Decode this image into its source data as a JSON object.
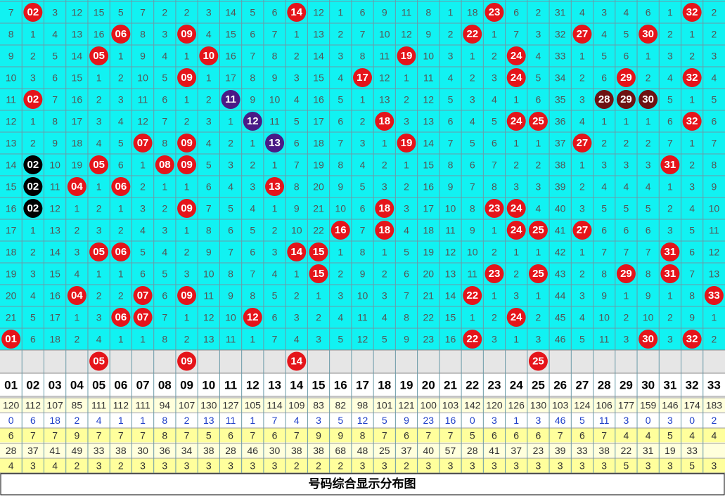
{
  "grid": {
    "ball_color": "#e5141a",
    "rows": [
      [
        7,
        {
          "ball": "02"
        },
        3,
        12,
        15,
        5,
        7,
        2,
        2,
        3,
        14,
        5,
        6,
        {
          "ball": "14"
        },
        12,
        1,
        6,
        9,
        11,
        8,
        1,
        18,
        {
          "ball": "23"
        },
        6,
        2,
        31,
        4,
        3,
        4,
        6,
        1,
        {
          "ball": "32"
        },
        2
      ],
      [
        8,
        1,
        4,
        13,
        16,
        {
          "ball": "06"
        },
        8,
        3,
        {
          "ball": "09"
        },
        4,
        15,
        6,
        7,
        1,
        13,
        2,
        7,
        10,
        12,
        9,
        2,
        {
          "ball": "22"
        },
        1,
        7,
        3,
        32,
        {
          "ball": "27"
        },
        4,
        5,
        {
          "ball": "30"
        },
        2,
        1,
        2
      ],
      [
        9,
        2,
        5,
        14,
        {
          "ball": "05"
        },
        1,
        9,
        4,
        1,
        {
          "ball": "10"
        },
        16,
        7,
        8,
        2,
        14,
        3,
        8,
        11,
        {
          "ball": "19"
        },
        10,
        3,
        1,
        2,
        {
          "ball": "24"
        },
        4,
        33,
        1,
        5,
        6,
        1,
        3,
        2,
        3
      ],
      [
        10,
        3,
        6,
        15,
        1,
        2,
        10,
        5,
        {
          "ball": "09"
        },
        1,
        17,
        8,
        9,
        3,
        15,
        4,
        {
          "ball": "17"
        },
        12,
        1,
        11,
        4,
        2,
        3,
        {
          "ball": "24"
        },
        5,
        34,
        2,
        6,
        {
          "ball": "29"
        },
        2,
        4,
        {
          "ball": "32"
        },
        4
      ],
      [
        11,
        {
          "ball": "02"
        },
        7,
        16,
        2,
        3,
        11,
        6,
        1,
        2,
        {
          "ball": "11",
          "color": "#4a1a86"
        },
        9,
        10,
        4,
        16,
        5,
        1,
        13,
        2,
        12,
        5,
        3,
        4,
        1,
        6,
        35,
        3,
        {
          "ball": "28",
          "color": "#6e1212"
        },
        {
          "ball": "29",
          "color": "#6e1212"
        },
        {
          "ball": "30",
          "color": "#6e1212"
        },
        5,
        1,
        5
      ],
      [
        12,
        1,
        8,
        17,
        3,
        4,
        12,
        7,
        2,
        3,
        1,
        {
          "ball": "12",
          "color": "#4a1a86"
        },
        11,
        5,
        17,
        6,
        2,
        {
          "ball": "18"
        },
        3,
        13,
        6,
        4,
        5,
        {
          "ball": "24"
        },
        {
          "ball": "25"
        },
        36,
        4,
        1,
        1,
        1,
        6,
        {
          "ball": "32"
        },
        6
      ],
      [
        13,
        2,
        9,
        18,
        4,
        5,
        {
          "ball": "07"
        },
        8,
        {
          "ball": "09"
        },
        4,
        2,
        1,
        {
          "ball": "13",
          "color": "#4a1a86"
        },
        6,
        18,
        7,
        3,
        1,
        {
          "ball": "19"
        },
        14,
        7,
        5,
        6,
        1,
        1,
        37,
        {
          "ball": "27"
        },
        2,
        2,
        2,
        7,
        1,
        7
      ],
      [
        14,
        {
          "ball": "02",
          "color": "#000000"
        },
        10,
        19,
        {
          "ball": "05"
        },
        6,
        1,
        {
          "ball": "08"
        },
        {
          "ball": "09"
        },
        5,
        3,
        2,
        1,
        7,
        19,
        8,
        4,
        2,
        1,
        15,
        8,
        6,
        7,
        2,
        2,
        38,
        1,
        3,
        3,
        3,
        {
          "ball": "31"
        },
        2,
        8
      ],
      [
        15,
        {
          "ball": "02",
          "color": "#000000"
        },
        11,
        {
          "ball": "04"
        },
        1,
        {
          "ball": "06"
        },
        2,
        1,
        1,
        6,
        4,
        3,
        {
          "ball": "13"
        },
        8,
        20,
        9,
        5,
        3,
        2,
        16,
        9,
        7,
        8,
        3,
        3,
        39,
        2,
        4,
        4,
        4,
        1,
        3,
        9
      ],
      [
        16,
        {
          "ball": "02",
          "color": "#000000"
        },
        12,
        1,
        2,
        1,
        3,
        2,
        {
          "ball": "09"
        },
        7,
        5,
        4,
        1,
        9,
        21,
        10,
        6,
        {
          "ball": "18"
        },
        3,
        17,
        10,
        8,
        {
          "ball": "23"
        },
        {
          "ball": "24"
        },
        4,
        40,
        3,
        5,
        5,
        5,
        2,
        4,
        10
      ],
      [
        17,
        1,
        13,
        2,
        3,
        2,
        4,
        3,
        1,
        8,
        6,
        5,
        2,
        10,
        22,
        {
          "ball": "16"
        },
        7,
        {
          "ball": "18"
        },
        4,
        18,
        11,
        9,
        1,
        {
          "ball": "24"
        },
        {
          "ball": "25"
        },
        41,
        {
          "ball": "27"
        },
        6,
        6,
        6,
        3,
        5,
        11
      ],
      [
        18,
        2,
        14,
        3,
        {
          "ball": "05"
        },
        {
          "ball": "06"
        },
        5,
        4,
        2,
        9,
        7,
        6,
        3,
        {
          "ball": "14"
        },
        {
          "ball": "15"
        },
        1,
        8,
        1,
        5,
        19,
        12,
        10,
        2,
        1,
        1,
        42,
        1,
        7,
        7,
        7,
        {
          "ball": "31"
        },
        6,
        12
      ],
      [
        19,
        3,
        15,
        4,
        1,
        1,
        6,
        5,
        3,
        10,
        8,
        7,
        4,
        1,
        {
          "ball": "15"
        },
        2,
        9,
        2,
        6,
        20,
        13,
        11,
        {
          "ball": "23"
        },
        2,
        {
          "ball": "25"
        },
        43,
        2,
        8,
        {
          "ball": "29"
        },
        8,
        {
          "ball": "31"
        },
        7,
        13
      ],
      [
        20,
        4,
        16,
        {
          "ball": "04"
        },
        2,
        2,
        {
          "ball": "07"
        },
        6,
        {
          "ball": "09"
        },
        11,
        9,
        8,
        5,
        2,
        1,
        3,
        10,
        3,
        7,
        21,
        14,
        {
          "ball": "22"
        },
        1,
        3,
        1,
        44,
        3,
        9,
        1,
        9,
        1,
        8,
        {
          "ball": "33"
        }
      ],
      [
        21,
        5,
        17,
        1,
        3,
        {
          "ball": "06"
        },
        {
          "ball": "07"
        },
        7,
        1,
        12,
        10,
        {
          "ball": "12"
        },
        6,
        3,
        2,
        4,
        11,
        4,
        8,
        22,
        15,
        1,
        2,
        {
          "ball": "24"
        },
        2,
        45,
        4,
        10,
        2,
        10,
        2,
        9,
        1
      ],
      [
        {
          "ball": "01"
        },
        6,
        18,
        2,
        4,
        1,
        1,
        8,
        2,
        13,
        11,
        1,
        7,
        4,
        3,
        5,
        12,
        5,
        9,
        23,
        16,
        {
          "ball": "22"
        },
        3,
        1,
        3,
        46,
        5,
        11,
        3,
        {
          "ball": "30"
        },
        3,
        {
          "ball": "32"
        },
        2
      ]
    ]
  },
  "pending_row": [
    null,
    null,
    null,
    null,
    {
      "ball": "05"
    },
    null,
    null,
    null,
    {
      "ball": "09"
    },
    null,
    null,
    null,
    null,
    {
      "ball": "14"
    },
    null,
    null,
    null,
    null,
    null,
    null,
    null,
    null,
    null,
    null,
    {
      "ball": "25"
    },
    null,
    null,
    null,
    null,
    null,
    null,
    null,
    null
  ],
  "header": [
    "01",
    "02",
    "03",
    "04",
    "05",
    "06",
    "07",
    "08",
    "09",
    "10",
    "11",
    "12",
    "13",
    "14",
    "15",
    "16",
    "17",
    "18",
    "19",
    "20",
    "21",
    "22",
    "23",
    "24",
    "25",
    "26",
    "27",
    "28",
    "29",
    "30",
    "31",
    "32",
    "33"
  ],
  "stats": [
    {
      "background": "#ffffdc",
      "color": "#333333",
      "values": [
        120,
        112,
        107,
        85,
        111,
        112,
        111,
        94,
        107,
        130,
        127,
        105,
        114,
        109,
        83,
        82,
        98,
        101,
        121,
        100,
        103,
        142,
        120,
        126,
        130,
        103,
        124,
        106,
        177,
        159,
        146,
        174,
        183
      ]
    },
    {
      "background": "#ffffff",
      "color": "#1f3fc8",
      "values": [
        0,
        6,
        18,
        2,
        4,
        1,
        1,
        8,
        2,
        13,
        11,
        1,
        7,
        4,
        3,
        5,
        12,
        5,
        9,
        23,
        16,
        0,
        3,
        1,
        3,
        46,
        5,
        11,
        3,
        0,
        3,
        0,
        2
      ]
    },
    {
      "background": "#ffff9c",
      "color": "#333333",
      "values": [
        6,
        7,
        7,
        9,
        7,
        7,
        7,
        8,
        7,
        5,
        6,
        7,
        6,
        7,
        9,
        9,
        8,
        7,
        6,
        7,
        7,
        5,
        6,
        6,
        6,
        7,
        6,
        7,
        4,
        4,
        5,
        4,
        4
      ]
    },
    {
      "background": "#ffffdc",
      "color": "#333333",
      "values": [
        28,
        37,
        41,
        49,
        33,
        38,
        30,
        36,
        34,
        38,
        28,
        46,
        30,
        38,
        38,
        68,
        48,
        25,
        37,
        40,
        57,
        28,
        41,
        37,
        23,
        39,
        33,
        38,
        22,
        31,
        19,
        33,
        null
      ]
    },
    {
      "background": "#ffff9c",
      "color": "#333333",
      "values": [
        4,
        3,
        4,
        2,
        3,
        2,
        3,
        3,
        3,
        3,
        3,
        3,
        3,
        2,
        2,
        2,
        3,
        3,
        2,
        3,
        3,
        3,
        3,
        3,
        3,
        3,
        3,
        3,
        5,
        3,
        3,
        5,
        3
      ]
    }
  ],
  "footer": "号码综合显示分布图"
}
